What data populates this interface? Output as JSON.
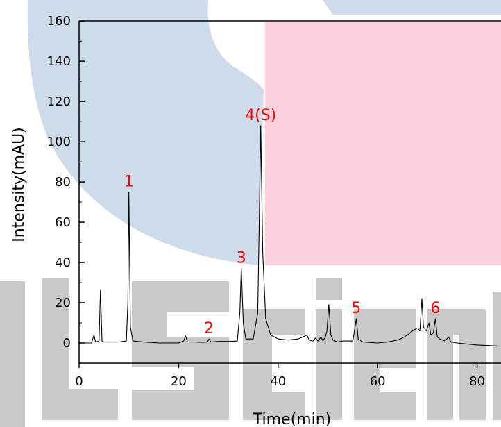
{
  "chart_data": {
    "type": "line",
    "xlabel": "Time(min)",
    "ylabel": "Intensity(mAU)",
    "xlim": [
      0,
      84
    ],
    "ylim": [
      -10,
      160
    ],
    "x_ticks": [
      0,
      20,
      40,
      60,
      80
    ],
    "y_ticks": [
      0,
      20,
      40,
      60,
      80,
      100,
      120,
      140,
      160
    ],
    "grid": false,
    "line_color": "#000000",
    "series": [
      {
        "points": [
          [
            0,
            0
          ],
          [
            2.5,
            0
          ],
          [
            3.0,
            4
          ],
          [
            3.3,
            0.5
          ],
          [
            4.0,
            1
          ],
          [
            4.3,
            26.5
          ],
          [
            4.6,
            1
          ],
          [
            5,
            0.5
          ],
          [
            8,
            0.5
          ],
          [
            9.5,
            1
          ],
          [
            9.8,
            20
          ],
          [
            10.0,
            75
          ],
          [
            10.3,
            8
          ],
          [
            10.8,
            1
          ],
          [
            13,
            0.5
          ],
          [
            16,
            0
          ],
          [
            20,
            0
          ],
          [
            21,
            1
          ],
          [
            21.4,
            3.5
          ],
          [
            21.8,
            0.5
          ],
          [
            23,
            0.5
          ],
          [
            25,
            0.3
          ],
          [
            25.8,
            0.5
          ],
          [
            26.1,
            2
          ],
          [
            26.5,
            0.5
          ],
          [
            28,
            0.8
          ],
          [
            30,
            0.8
          ],
          [
            31.8,
            1
          ],
          [
            32.3,
            15
          ],
          [
            32.6,
            37
          ],
          [
            33.0,
            10
          ],
          [
            33.5,
            2
          ],
          [
            35,
            2
          ],
          [
            35.9,
            15
          ],
          [
            36.2,
            60
          ],
          [
            36.5,
            108
          ],
          [
            36.9,
            45
          ],
          [
            37.5,
            12
          ],
          [
            38.5,
            4
          ],
          [
            40,
            2
          ],
          [
            42,
            1.5
          ],
          [
            44,
            2
          ],
          [
            45,
            3
          ],
          [
            45.8,
            4
          ],
          [
            46.2,
            1.5
          ],
          [
            47,
            1
          ],
          [
            47.5,
            2.5
          ],
          [
            48,
            1
          ],
          [
            48.6,
            3
          ],
          [
            49,
            1
          ],
          [
            49.5,
            3
          ],
          [
            49.8,
            6
          ],
          [
            50.2,
            19
          ],
          [
            50.6,
            4
          ],
          [
            51,
            1.5
          ],
          [
            52,
            0.5
          ],
          [
            53,
            1
          ],
          [
            55,
            1
          ],
          [
            55.4,
            7
          ],
          [
            55.7,
            12
          ],
          [
            56.1,
            2
          ],
          [
            57,
            0.5
          ],
          [
            60,
            0
          ],
          [
            62,
            0.5
          ],
          [
            64,
            1.5
          ],
          [
            65,
            2.5
          ],
          [
            66,
            4
          ],
          [
            67,
            6
          ],
          [
            68,
            7.5
          ],
          [
            68.5,
            6
          ],
          [
            68.9,
            22
          ],
          [
            69.2,
            8
          ],
          [
            69.8,
            6
          ],
          [
            70.3,
            10
          ],
          [
            70.7,
            4
          ],
          [
            71.2,
            5
          ],
          [
            71.6,
            12
          ],
          [
            72.0,
            3
          ],
          [
            72.5,
            2
          ],
          [
            73.5,
            1
          ],
          [
            74.3,
            3
          ],
          [
            74.7,
            0.5
          ],
          [
            76,
            0
          ],
          [
            80,
            -1
          ],
          [
            84,
            -1.5
          ]
        ]
      }
    ],
    "peak_labels": [
      {
        "text": "1",
        "x": 10.0,
        "y": 75
      },
      {
        "text": "2",
        "x": 26.1,
        "y": 2
      },
      {
        "text": "3",
        "x": 32.6,
        "y": 37
      },
      {
        "text": "4(S)",
        "x": 36.5,
        "y": 108
      },
      {
        "text": "5",
        "x": 55.7,
        "y": 12
      },
      {
        "text": "6",
        "x": 71.6,
        "y": 12
      }
    ],
    "label_color": "#ff0000"
  }
}
